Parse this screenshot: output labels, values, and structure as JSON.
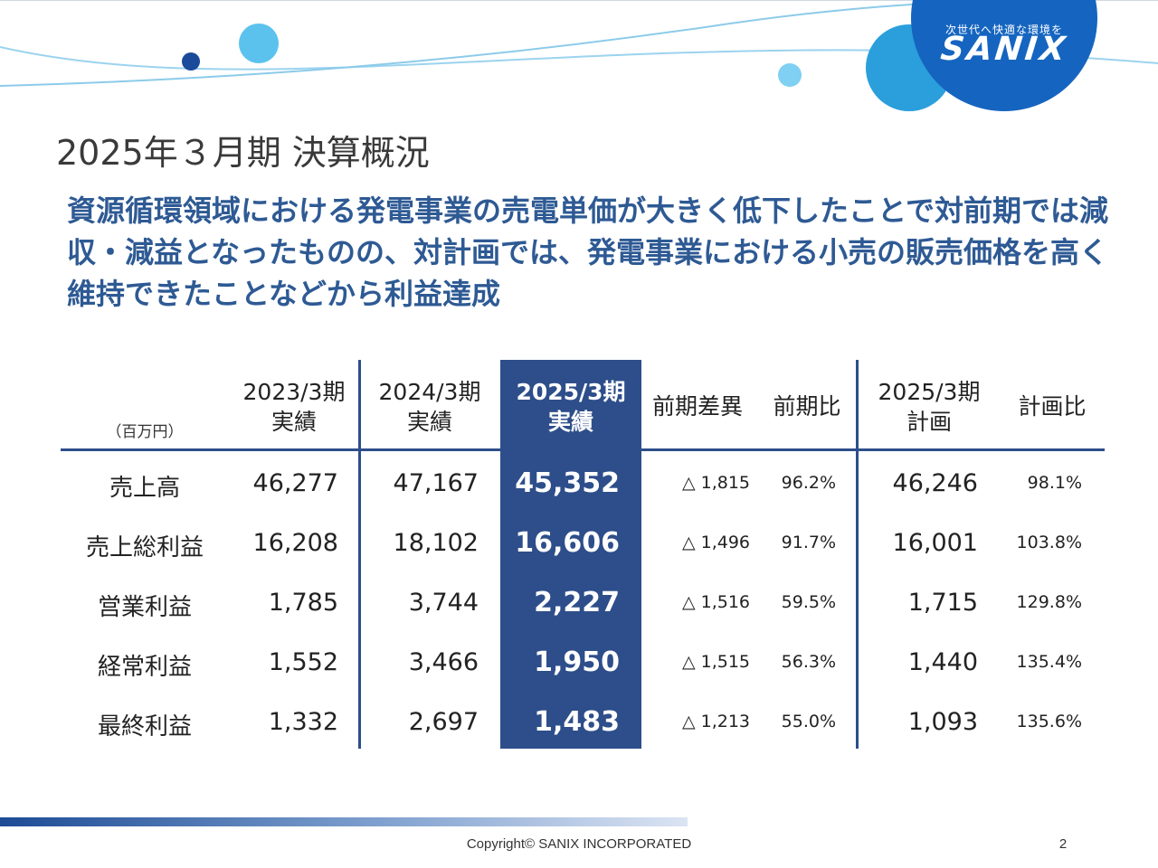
{
  "logo": {
    "tagline": "次世代へ快適な環境を",
    "wordmark": "SANIX"
  },
  "title": "2025年３月期 決算概況",
  "headline": "資源循環領域における発電事業の売電単価が大きく低下したことで対前期では減収・減益となったものの、対計画では、発電事業における小売の販売価格を高く維持できたことなどから利益達成",
  "table": {
    "unit": "（百万円）",
    "headers": [
      {
        "line1": "2023/3期",
        "line2": "実績"
      },
      {
        "line1": "2024/3期",
        "line2": "実績"
      },
      {
        "line1": "2025/3期",
        "line2": "実績"
      },
      {
        "line1": "前期差異",
        "line2": ""
      },
      {
        "line1": "前期比",
        "line2": ""
      },
      {
        "line1": "2025/3期",
        "line2": "計画"
      },
      {
        "line1": "計画比",
        "line2": ""
      }
    ],
    "rows": [
      {
        "label": "売上高",
        "fy2023": "46,277",
        "fy2024": "47,167",
        "fy2025": "45,352",
        "diff": "△ 1,815",
        "yoy": "96.2%",
        "plan": "46,246",
        "vs_plan": "98.1%"
      },
      {
        "label": "売上総利益",
        "fy2023": "16,208",
        "fy2024": "18,102",
        "fy2025": "16,606",
        "diff": "△ 1,496",
        "yoy": "91.7%",
        "plan": "16,001",
        "vs_plan": "103.8%"
      },
      {
        "label": "営業利益",
        "fy2023": "1,785",
        "fy2024": "3,744",
        "fy2025": "2,227",
        "diff": "△ 1,516",
        "yoy": "59.5%",
        "plan": "1,715",
        "vs_plan": "129.8%"
      },
      {
        "label": "経常利益",
        "fy2023": "1,552",
        "fy2024": "3,466",
        "fy2025": "1,950",
        "diff": "△ 1,515",
        "yoy": "56.3%",
        "plan": "1,440",
        "vs_plan": "135.4%"
      },
      {
        "label": "最終利益",
        "fy2023": "1,332",
        "fy2024": "2,697",
        "fy2025": "1,483",
        "diff": "△ 1,213",
        "yoy": "55.0%",
        "plan": "1,093",
        "vs_plan": "135.6%"
      }
    ]
  },
  "footer": {
    "copyright": "Copyright©  SANIX INCORPORATED",
    "page": "2"
  },
  "colors": {
    "navy": "#2d4e8a",
    "headline": "#2e5a94",
    "sky": "#5bc0eb",
    "deep": "#1565c0"
  }
}
